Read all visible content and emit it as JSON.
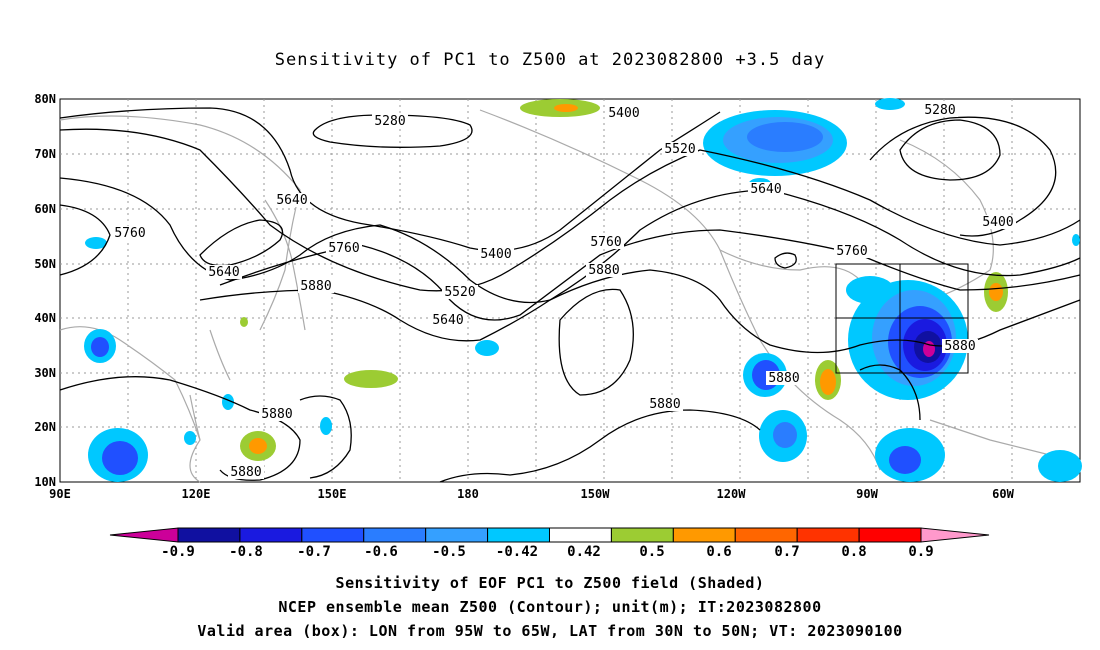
{
  "title": "Sensitivity of PC1 to Z500 at 2023082800 +3.5 day",
  "lat_labels": [
    "80N",
    "70N",
    "60N",
    "50N",
    "40N",
    "30N",
    "20N",
    "10N"
  ],
  "lon_labels": [
    "90E",
    "120E",
    "150E",
    "180",
    "150W",
    "120W",
    "90W",
    "60W"
  ],
  "contour_labels": [
    "5280",
    "5400",
    "5520",
    "5640",
    "5760",
    "5880"
  ],
  "contour_values": [
    5280,
    5400,
    5520,
    5640,
    5760,
    5880
  ],
  "colorbar": {
    "labels": [
      "-0.9",
      "-0.8",
      "-0.7",
      "-0.6",
      "-0.5",
      "-0.42",
      "0.42",
      "0.5",
      "0.6",
      "0.7",
      "0.8",
      "0.9"
    ],
    "colors": [
      "#cc0099",
      "#1010a0",
      "#1a1ae0",
      "#2050ff",
      "#2a7dff",
      "#35a0ff",
      "#00c8ff",
      "#ffffff",
      "#9ccc33",
      "#ff9900",
      "#ff6600",
      "#ff3300",
      "#ff0000",
      "#ff99cc"
    ]
  },
  "valid_box": {
    "lon_from": "95W",
    "lon_to": "65W",
    "lat_from": "30N",
    "lat_to": "50N"
  },
  "captions": {
    "line1": "Sensitivity of EOF PC1 to Z500 field (Shaded)",
    "line2": "NCEP ensemble mean Z500 (Contour); unit(m); IT:2023082800",
    "line3": "Valid area (box): LON from 95W to 65W, LAT from 30N to 50N; VT: 2023090100"
  }
}
